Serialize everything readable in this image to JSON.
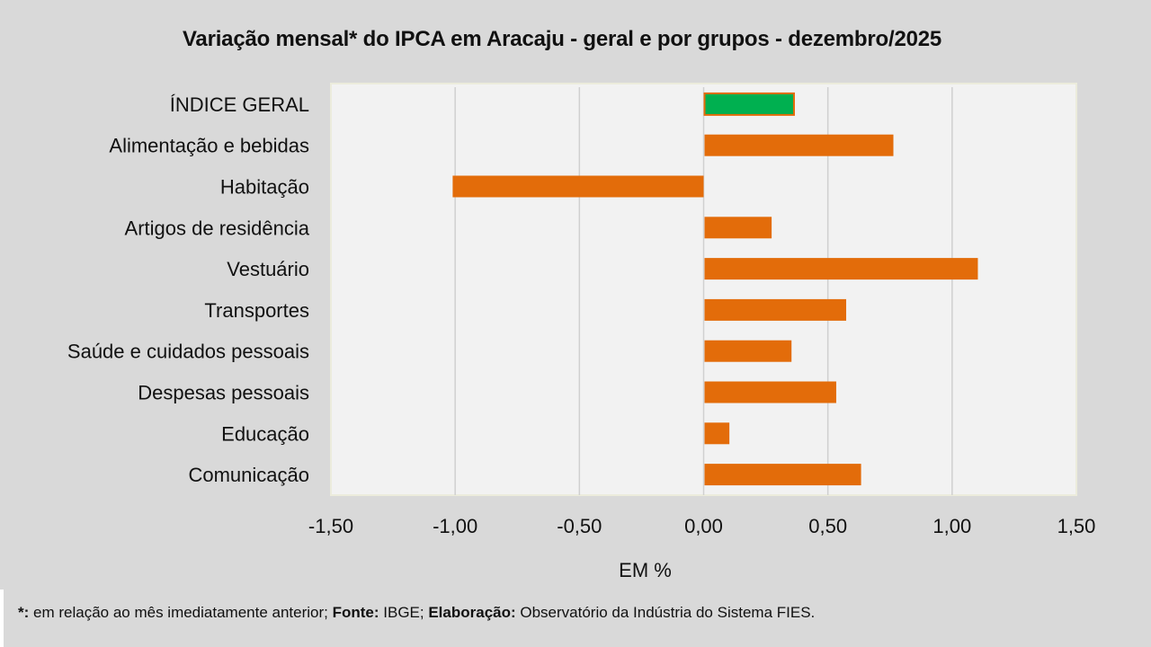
{
  "chart_data": {
    "type": "bar",
    "orientation": "horizontal",
    "title": "Variação  mensal*  do IPCA em Aracaju  - geral e por grupos  - dezembro/2025",
    "xlabel": "EM %",
    "ylabel": "",
    "xlim": [
      -1.5,
      1.5
    ],
    "xticks": [
      -1.5,
      -1.0,
      -0.5,
      0.0,
      0.5,
      1.0,
      1.5
    ],
    "xtick_labels": [
      "-1,50",
      "-1,00",
      "-0,50",
      "0,00",
      "0,50",
      "1,00",
      "1,50"
    ],
    "grid": "vertical",
    "legend": "none",
    "categories": [
      "ÍNDICE GERAL",
      "Alimentação e bebidas",
      "Habitação",
      "Artigos de residência",
      "Vestuário",
      "Transportes",
      "Saúde e cuidados pessoais",
      "Despesas pessoais",
      "Educação",
      "Comunicação"
    ],
    "values": [
      0.36,
      0.76,
      -1.01,
      0.27,
      1.1,
      0.57,
      0.35,
      0.53,
      0.1,
      0.63
    ],
    "colors": {
      "highlight": "#00b050",
      "default": "#e36c0a",
      "plot_background": "#f2f2f2",
      "gridline": "#d0d0d0"
    },
    "highlight_index": 0
  },
  "footnote": {
    "marker": "*:",
    "text1": " em relação ao mês imediatamente  anterior; ",
    "source_label": "Fonte:",
    "source": " IBGE; ",
    "credit_label": "Elaboração:",
    "credit": " Observatório da Indústria do Sistema FIES."
  }
}
